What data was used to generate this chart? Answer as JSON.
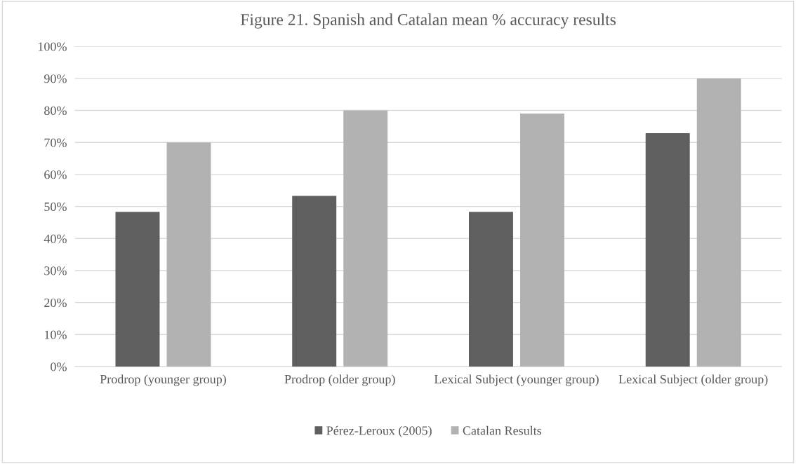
{
  "chart_data": {
    "type": "bar",
    "title": "Figure 21. Spanish and Catalan mean % accuracy results",
    "categories": [
      "Prodrop (younger group)",
      "Prodrop (older group)",
      "Lexical Subject (younger group)",
      "Lexical Subject (older group)"
    ],
    "series": [
      {
        "name": "Pérez-Leroux (2005)",
        "color": "#5f5f5f",
        "values": [
          48.3,
          53.3,
          48.3,
          72.9
        ]
      },
      {
        "name": "Catalan Results",
        "color": "#b2b2b2",
        "values": [
          70,
          80,
          79,
          90
        ]
      }
    ],
    "ylim": [
      0,
      100
    ],
    "yticks": [
      {
        "value": 0,
        "label": "0%"
      },
      {
        "value": 10,
        "label": "10%"
      },
      {
        "value": 20,
        "label": "20%"
      },
      {
        "value": 30,
        "label": "30%"
      },
      {
        "value": 40,
        "label": "40%"
      },
      {
        "value": 50,
        "label": "50%"
      },
      {
        "value": 60,
        "label": "60%"
      },
      {
        "value": 70,
        "label": "70%"
      },
      {
        "value": 80,
        "label": "80%"
      },
      {
        "value": 90,
        "label": "90%"
      },
      {
        "value": 100,
        "label": "100%"
      }
    ],
    "grid": "y",
    "legend": "bottom"
  }
}
